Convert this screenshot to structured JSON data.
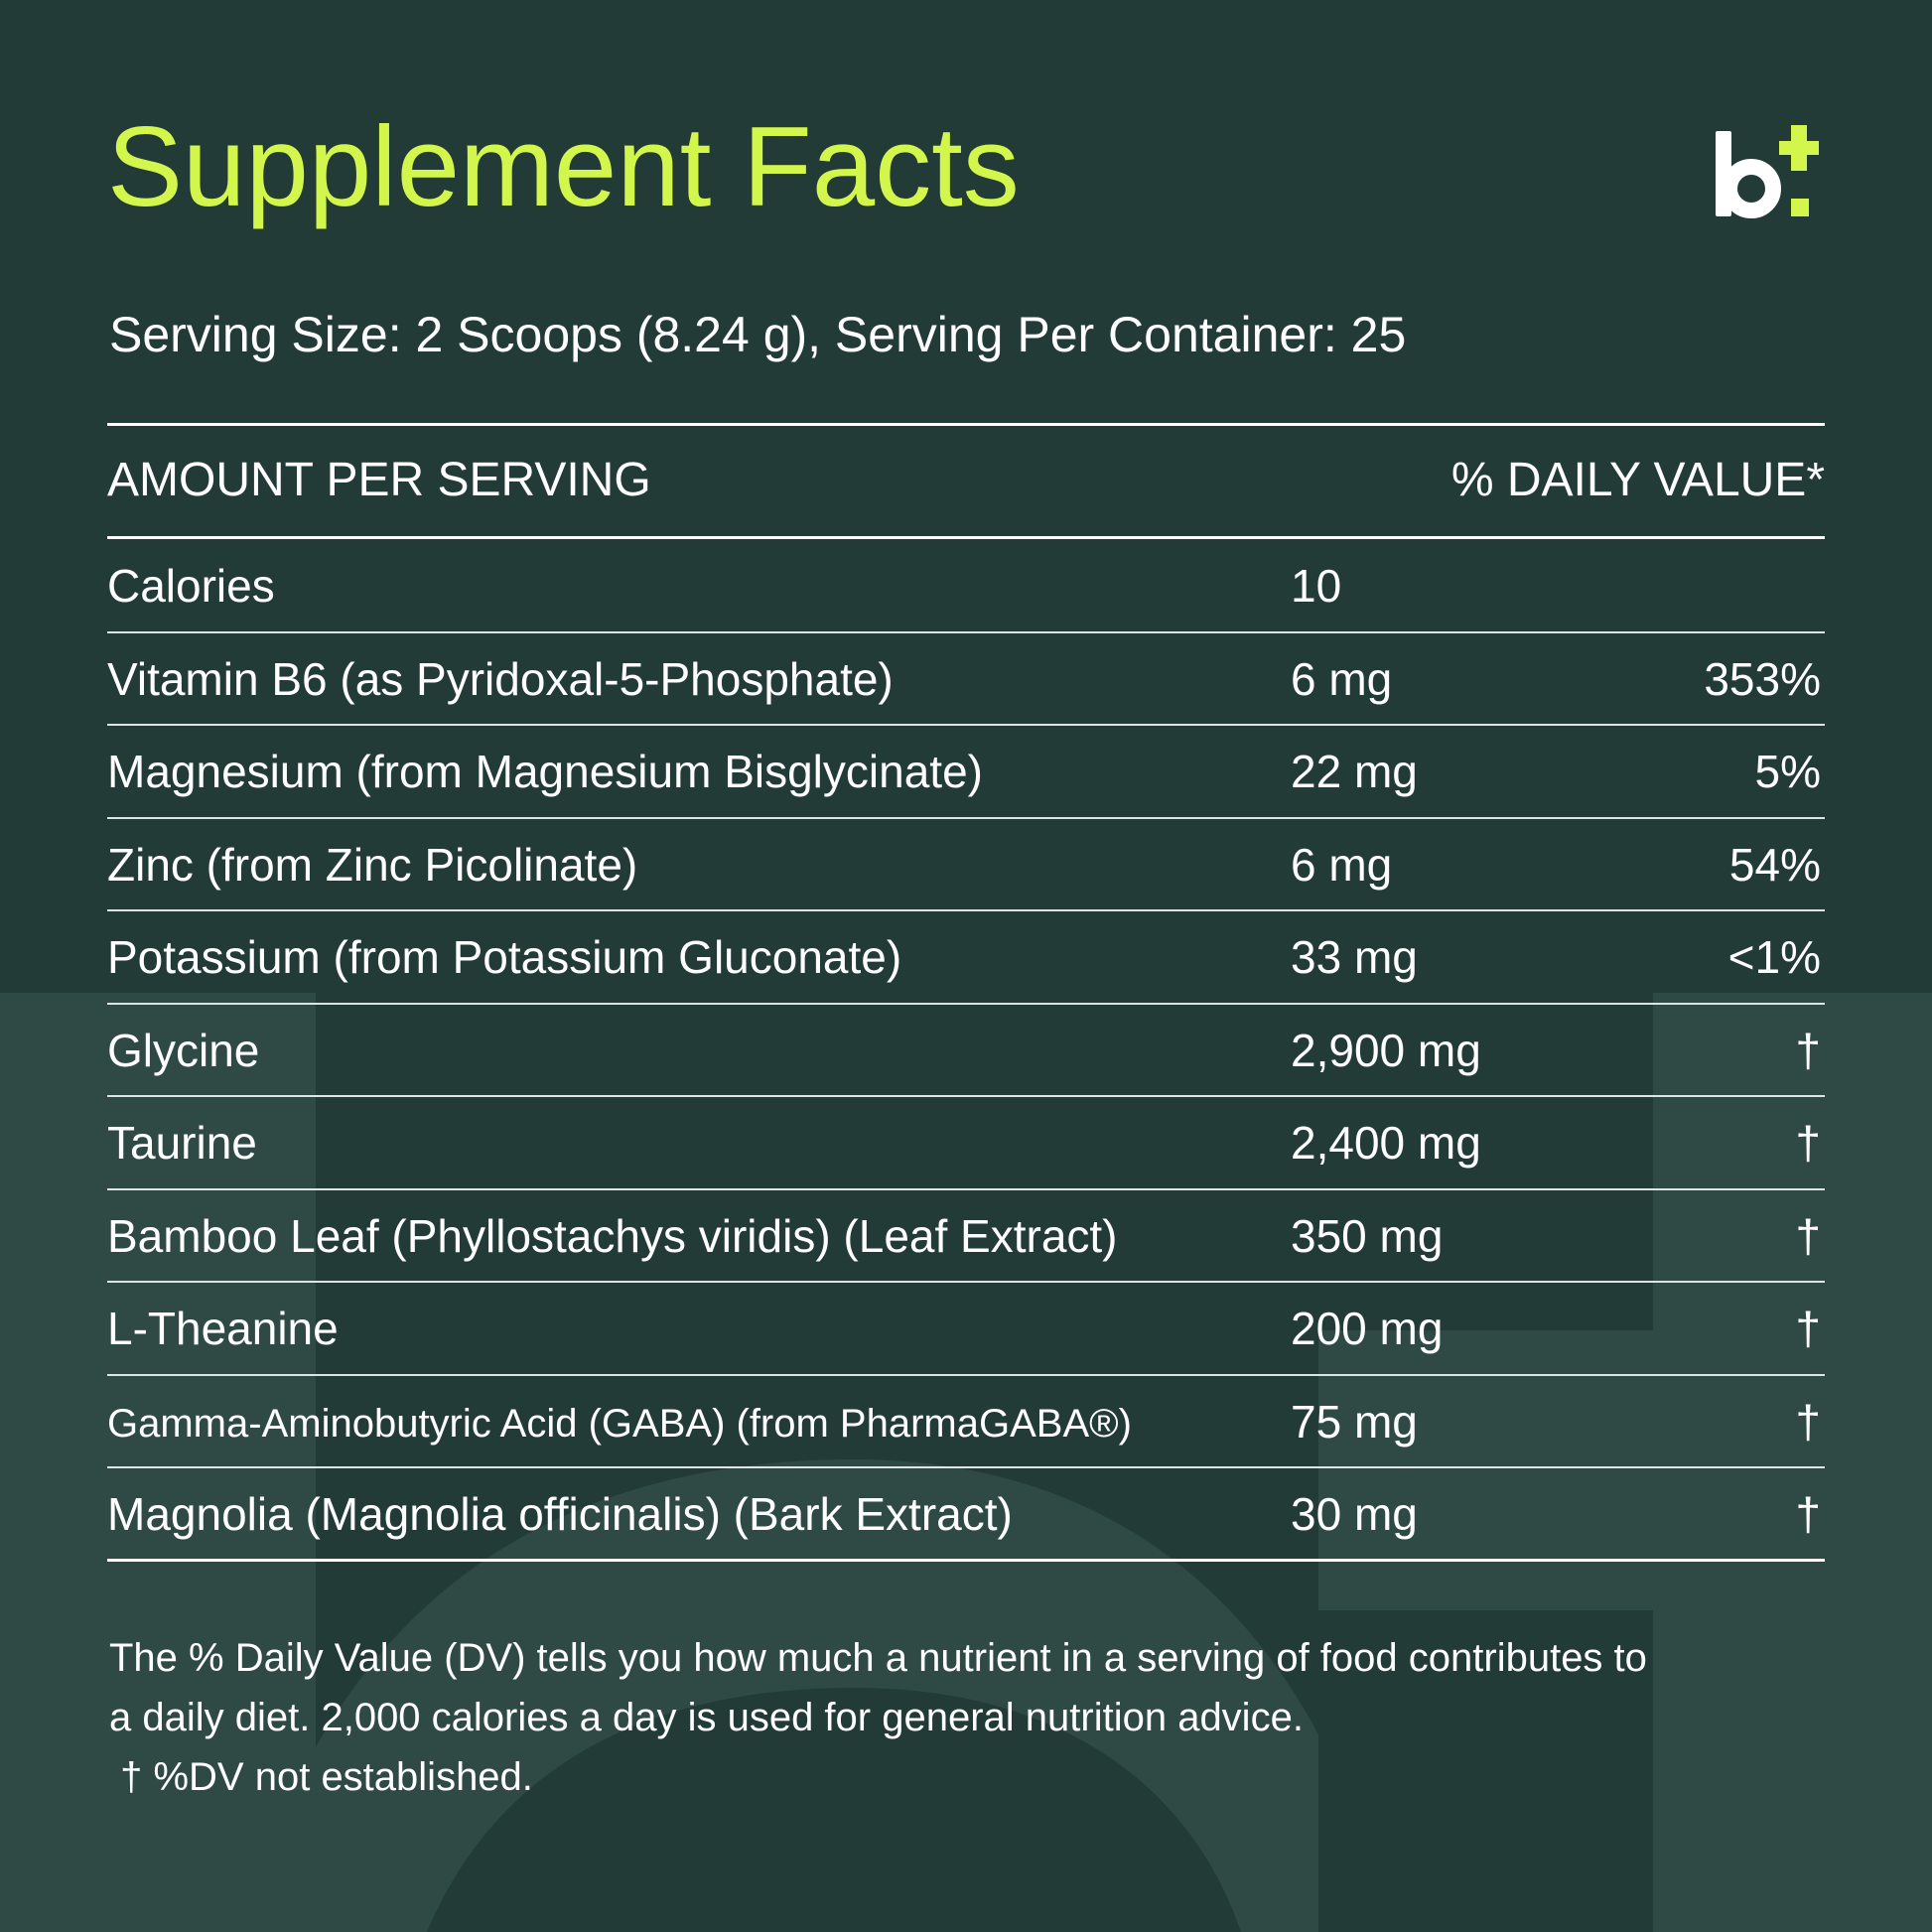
{
  "colors": {
    "background": "#233b37",
    "background_shape": "#2f4a45",
    "accent": "#d2f64c",
    "text": "#ffffff"
  },
  "header": {
    "title": "Supplement Facts",
    "logo_icon": "b-plus-logo-icon",
    "serving": "Serving Size: 2 Scoops (8.24 g), Serving Per Container: 25"
  },
  "table": {
    "column_left": "AMOUNT PER SERVING",
    "column_right": "% DAILY VALUE*",
    "rows": [
      {
        "name": "Calories",
        "amount": "10",
        "dv": ""
      },
      {
        "name": "Vitamin B6 (as Pyridoxal-5-Phosphate)",
        "amount": "6 mg",
        "dv": "353%"
      },
      {
        "name": "Magnesium (from Magnesium Bisglycinate)",
        "amount": "22 mg",
        "dv": "5%"
      },
      {
        "name": "Zinc (from Zinc Picolinate)",
        "amount": "6 mg",
        "dv": "54%"
      },
      {
        "name": "Potassium (from Potassium Gluconate)",
        "amount": "33 mg",
        "dv": "<1%"
      },
      {
        "name": "Glycine",
        "amount": "2,900 mg",
        "dv": "†"
      },
      {
        "name": "Taurine",
        "amount": "2,400 mg",
        "dv": "†"
      },
      {
        "name": "Bamboo Leaf (Phyllostachys viridis) (Leaf Extract)",
        "amount": "350 mg",
        "dv": "†"
      },
      {
        "name": "L-Theanine",
        "amount": "200 mg",
        "dv": "†"
      },
      {
        "name": "Gamma-Aminobutyric Acid (GABA) (from PharmaGABA®)",
        "amount": "75 mg",
        "dv": "†"
      },
      {
        "name": "Magnolia (Magnolia officinalis) (Bark Extract)",
        "amount": "30 mg",
        "dv": "†"
      }
    ]
  },
  "footnote": {
    "line1": "The % Daily Value (DV) tells you how much a nutrient in a serving of food contributes to",
    "line2": "a daily diet. 2,000 calories a day is used for general nutrition advice.",
    "line3": " † %DV not established."
  }
}
